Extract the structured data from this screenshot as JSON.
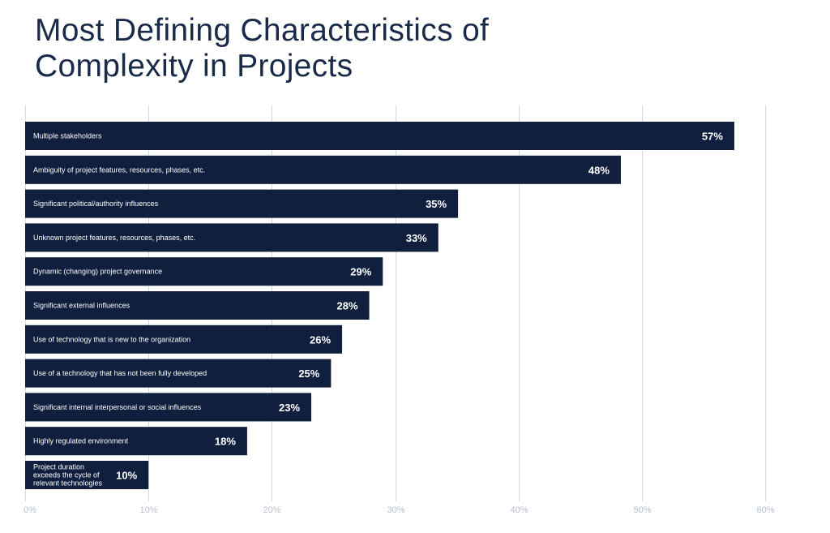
{
  "chart_data": {
    "type": "bar",
    "orientation": "horizontal",
    "title_lines": [
      "Most Defining Characteristics of",
      "Complexity in Projects"
    ],
    "categories": [
      [
        "Multiple stakeholders"
      ],
      [
        "Ambiguity of project features, resources, phases, etc."
      ],
      [
        "Significant political/authority influences"
      ],
      [
        "Unknown project features, resources, phases, etc."
      ],
      [
        "Dynamic (changing) project governance"
      ],
      [
        "Significant external influences"
      ],
      [
        "Use of technology that is new to the organization"
      ],
      [
        "Use of a technology that has not been fully developed"
      ],
      [
        "Significant internal interpersonal or social influences"
      ],
      [
        "Highly regulated environment"
      ],
      [
        "Project duration",
        "exceeds the cycle of",
        "relevant technologies"
      ]
    ],
    "values": [
      57.5,
      48.3,
      35.1,
      33.5,
      29.0,
      27.9,
      25.7,
      24.8,
      23.2,
      18.0,
      10.0
    ],
    "value_labels": [
      "57%",
      "48%",
      "35%",
      "33%",
      "29%",
      "28%",
      "26%",
      "25%",
      "23%",
      "18%",
      "10%"
    ],
    "xlim": [
      0,
      60
    ],
    "xticks": [
      0,
      10,
      20,
      30,
      40,
      50,
      60
    ],
    "xtick_labels": [
      "0%",
      "10%",
      "20%",
      "30%",
      "40%",
      "50%",
      "60%"
    ],
    "grid": true,
    "legend": "none",
    "bar_color": "#0f1f3d",
    "grid_color": "#d6d9e0",
    "tick_color": "#b7bfcf",
    "title_color": "#1a2a49"
  }
}
